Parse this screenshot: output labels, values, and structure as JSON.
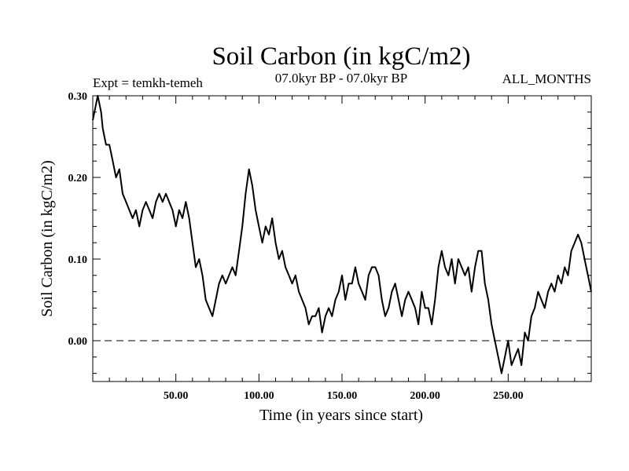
{
  "chart_data": {
    "type": "line",
    "title": "Soil Carbon (in kgC/m2)",
    "subtitle_left": "Expt = temkh-temeh",
    "subtitle_center": "07.0kyr BP - 07.0kyr BP",
    "subtitle_right": "ALL_MONTHS",
    "xlabel": "Time (in years since start)",
    "ylabel": "Soil Carbon (in kgC/m2)",
    "xlim": [
      0,
      300
    ],
    "ylim": [
      -0.05,
      0.3
    ],
    "x_ticks": [
      50,
      100,
      150,
      200,
      250
    ],
    "x_tick_labels": [
      "50.00",
      "100.00",
      "150.00",
      "200.00",
      "250.00"
    ],
    "y_ticks": [
      0.0,
      0.1,
      0.2,
      0.3
    ],
    "y_tick_labels": [
      "0.00",
      "0.10",
      "0.20",
      "0.30"
    ],
    "reference_line": {
      "y": 0.0,
      "style": "dashed"
    },
    "grid": false,
    "series": [
      {
        "color": "#000000",
        "x": [
          0,
          1,
          2,
          3,
          4,
          5,
          6,
          7,
          8,
          9,
          10,
          12,
          14,
          16,
          18,
          20,
          22,
          24,
          26,
          28,
          30,
          32,
          34,
          36,
          38,
          40,
          42,
          44,
          46,
          48,
          50,
          52,
          54,
          56,
          58,
          60,
          62,
          64,
          66,
          68,
          70,
          72,
          74,
          76,
          78,
          80,
          82,
          84,
          86,
          88,
          90,
          92,
          94,
          96,
          98,
          100,
          102,
          104,
          106,
          108,
          110,
          112,
          114,
          116,
          118,
          120,
          122,
          124,
          126,
          128,
          130,
          132,
          134,
          136,
          138,
          140,
          142,
          144,
          146,
          148,
          150,
          152,
          154,
          156,
          158,
          160,
          162,
          164,
          166,
          168,
          170,
          172,
          174,
          176,
          178,
          180,
          182,
          184,
          186,
          188,
          190,
          192,
          194,
          196,
          198,
          200,
          202,
          204,
          206,
          208,
          210,
          212,
          214,
          216,
          218,
          220,
          222,
          224,
          226,
          228,
          230,
          232,
          234,
          236,
          238,
          240,
          242,
          244,
          246,
          248,
          250,
          252,
          254,
          256,
          258,
          260,
          262,
          264,
          266,
          268,
          270,
          272,
          274,
          276,
          278,
          280,
          282,
          284,
          286,
          288,
          290,
          292,
          294,
          296,
          298,
          300
        ],
        "y": [
          0.27,
          0.28,
          0.29,
          0.3,
          0.29,
          0.28,
          0.26,
          0.25,
          0.24,
          0.24,
          0.24,
          0.22,
          0.2,
          0.21,
          0.18,
          0.17,
          0.16,
          0.15,
          0.16,
          0.14,
          0.16,
          0.17,
          0.16,
          0.15,
          0.17,
          0.18,
          0.17,
          0.18,
          0.17,
          0.16,
          0.14,
          0.16,
          0.15,
          0.17,
          0.15,
          0.12,
          0.09,
          0.1,
          0.08,
          0.05,
          0.04,
          0.03,
          0.05,
          0.07,
          0.08,
          0.07,
          0.08,
          0.09,
          0.08,
          0.11,
          0.14,
          0.18,
          0.21,
          0.19,
          0.16,
          0.14,
          0.12,
          0.14,
          0.13,
          0.15,
          0.12,
          0.1,
          0.11,
          0.09,
          0.08,
          0.07,
          0.08,
          0.06,
          0.05,
          0.04,
          0.02,
          0.03,
          0.03,
          0.04,
          0.01,
          0.03,
          0.04,
          0.03,
          0.05,
          0.06,
          0.08,
          0.05,
          0.07,
          0.07,
          0.09,
          0.07,
          0.06,
          0.05,
          0.08,
          0.09,
          0.09,
          0.08,
          0.05,
          0.03,
          0.04,
          0.06,
          0.07,
          0.05,
          0.03,
          0.05,
          0.06,
          0.05,
          0.04,
          0.02,
          0.06,
          0.04,
          0.04,
          0.02,
          0.05,
          0.09,
          0.11,
          0.09,
          0.08,
          0.1,
          0.07,
          0.1,
          0.09,
          0.08,
          0.09,
          0.06,
          0.09,
          0.11,
          0.11,
          0.07,
          0.05,
          0.02,
          0.0,
          -0.02,
          -0.04,
          -0.02,
          0.0,
          -0.03,
          -0.02,
          -0.01,
          -0.03,
          0.01,
          0.0,
          0.03,
          0.04,
          0.06,
          0.05,
          0.04,
          0.06,
          0.07,
          0.06,
          0.08,
          0.07,
          0.09,
          0.08,
          0.11,
          0.12,
          0.13,
          0.12,
          0.1,
          0.08,
          0.06
        ]
      }
    ]
  }
}
